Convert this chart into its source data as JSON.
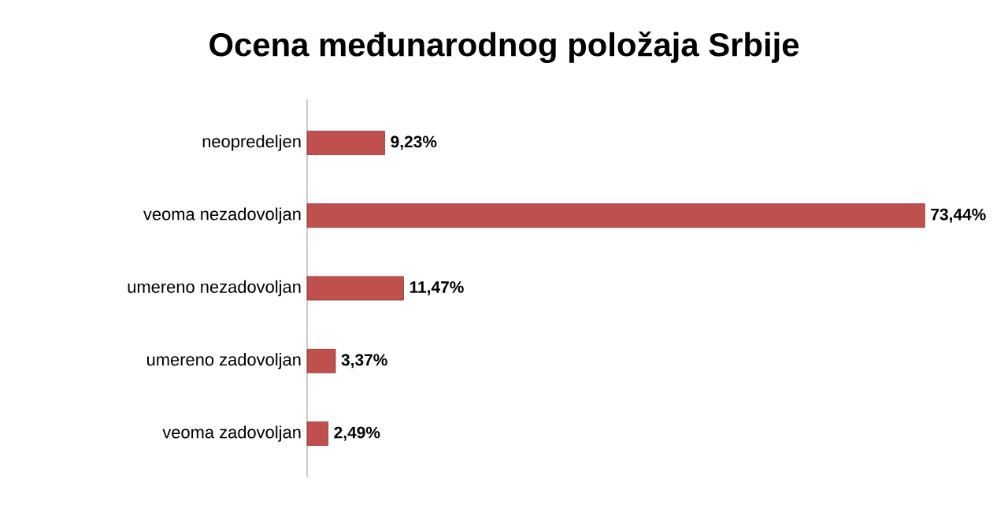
{
  "chart_data": {
    "type": "bar",
    "orientation": "horizontal",
    "title": "Ocena međunarodnog položaja Srbije",
    "categories": [
      "neopredeljen",
      "veoma nezadovoljan",
      "umereno nezadovoljan",
      "umereno zadovoljan",
      "veoma zadovoljan"
    ],
    "values": [
      9.23,
      73.44,
      11.47,
      3.37,
      2.49
    ],
    "value_labels": [
      "9,23%",
      "73,44%",
      "11,47%",
      "3,37%",
      "2,49%"
    ],
    "color": "#c0504d"
  }
}
